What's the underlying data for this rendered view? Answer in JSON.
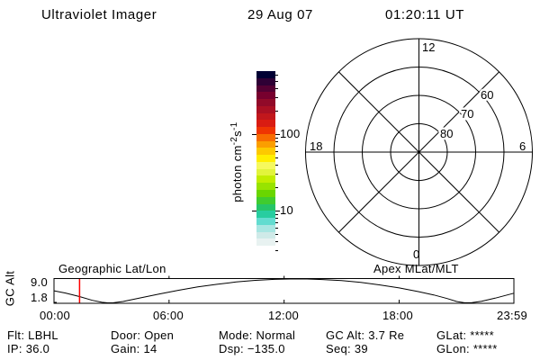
{
  "header": {
    "title": "Ultraviolet Imager",
    "date": "29 Aug 07",
    "time": "01:20:11 UT"
  },
  "polar": {
    "top_label": "12",
    "left_label": "18",
    "right_label": "6",
    "bottom_label": "0",
    "ring_labels": [
      "80",
      "70",
      "60"
    ],
    "caption": "Apex MLat/MLT"
  },
  "colorbar": {
    "unit_prefix": "photon cm",
    "unit_sup1": "-2",
    "unit_mid": "s",
    "unit_sup2": "-1",
    "tick_top": "100",
    "tick_bottom": "10"
  },
  "timeline": {
    "left_caption": "Geographic Lat/Lon",
    "ylabel": "GC Alt",
    "ytick_top": "9.0",
    "ytick_bottom": "1.8",
    "xticks": [
      "00:00",
      "06:00",
      "12:00",
      "18:00",
      "23:59"
    ]
  },
  "status": {
    "rows": [
      {
        "cells": [
          "Flt: LBHL",
          "Door: Open",
          "Mode: Normal",
          "GC Alt: 3.7 Re",
          "GLat: *****"
        ]
      },
      {
        "cells": [
          "IP: 36.0",
          "Gain: 14",
          "Dsp: −135.0",
          "Seq: 39",
          "GLon: *****"
        ]
      }
    ]
  },
  "chart_data": [
    {
      "type": "polar_grid",
      "title": "Apex MLat/MLT",
      "angular_tick_labels": [
        "12",
        "18",
        "6",
        "0"
      ],
      "radial_tick_labels": [
        80,
        70,
        60
      ],
      "radial_fractions": [
        0.25,
        0.5,
        0.75,
        1.0
      ],
      "spoke_step_deg": 45,
      "series": []
    },
    {
      "type": "colorbar",
      "scale": "log",
      "unit": "photon cm^-2 s^-1",
      "labeled_ticks": [
        100,
        10
      ],
      "range": [
        2.8,
        660
      ],
      "colors_top_to_bottom": [
        "#000033",
        "#2e0035",
        "#540033",
        "#77002e",
        "#910a29",
        "#aa1023",
        "#c1171c",
        "#d91c12",
        "#ef3502",
        "#f86c00",
        "#fb9e00",
        "#fdc900",
        "#ffee00",
        "#f6f95e",
        "#e2f43c",
        "#c2ed00",
        "#98e300",
        "#69d600",
        "#3fcc2f",
        "#25c568",
        "#27cda0",
        "#63dcd0",
        "#a9e6e2",
        "#cfeae8",
        "#e8f2f1",
        "#ffffff"
      ]
    },
    {
      "type": "line",
      "title": "GC Alt vs UT",
      "ylabel": "GC Alt",
      "yticks": [
        9.0,
        1.8
      ],
      "xticks": [
        "00:00",
        "06:00",
        "12:00",
        "18:00",
        "23:59"
      ],
      "xlim_hours": [
        0,
        23.983
      ],
      "ylim": [
        1.66,
        9.14
      ],
      "x_hours": [
        0,
        0.6,
        1.33,
        2,
        2.5,
        2.8,
        3.1,
        3.6,
        4.5,
        5.5,
        6.5,
        7.5,
        8.5,
        9.5,
        10.5,
        11.5,
        12.3,
        13.2,
        14,
        15,
        16,
        17,
        18,
        19,
        19.8,
        20.5,
        21,
        21.4,
        21.8,
        22.3,
        23,
        23.98
      ],
      "values_re": [
        5.45,
        4.75,
        3.7,
        2.55,
        1.95,
        1.8,
        1.82,
        2.2,
        3.3,
        4.5,
        5.6,
        6.6,
        7.4,
        8.1,
        8.6,
        8.9,
        9.0,
        9.0,
        8.85,
        8.5,
        8.0,
        7.2,
        6.3,
        5.2,
        4.2,
        3.1,
        2.2,
        1.82,
        1.85,
        2.3,
        3.2,
        4.7
      ],
      "marker": {
        "type": "vline",
        "time": "01:20",
        "hours": 1.333,
        "color": "#ff0000"
      }
    }
  ]
}
